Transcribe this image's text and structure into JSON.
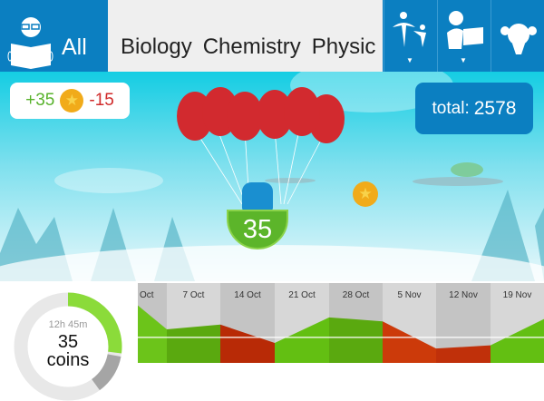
{
  "topbar": {
    "all_label": "All",
    "subjects": [
      "Biology",
      "Chemistry",
      "Physic"
    ],
    "icons": [
      "reader-icon",
      "parent-child-icon",
      "teacher-icon",
      "girl-icon"
    ]
  },
  "score": {
    "plus": "+35",
    "minus": "-15",
    "coin_icon": "star-coin-icon"
  },
  "total": {
    "label": "total:",
    "value": "2578"
  },
  "basket": {
    "value": "35",
    "balloons": 7
  },
  "donut": {
    "time": "12h 45m",
    "value": "35",
    "unit": "coins",
    "green_fraction": 0.27,
    "gray_fraction": 0.12,
    "colors": {
      "green": "#8bdb3a",
      "gray": "#a5a5a5",
      "track": "#e8e8e8"
    }
  },
  "chart_data": {
    "type": "area",
    "categories": [
      "Oct",
      "7 Oct",
      "14 Oct",
      "21 Oct",
      "28 Oct",
      "5 Nov",
      "12 Nov",
      "19 Nov"
    ],
    "points": [
      72,
      42,
      48,
      25,
      57,
      52,
      18,
      22,
      55
    ],
    "baseline": 32,
    "segment_colors": [
      "#6cc41a",
      "#5aa90f",
      "#b82a06",
      "#63bf12",
      "#5aa90f",
      "#cc3a0a",
      "#c0300a",
      "#63bf12"
    ]
  }
}
